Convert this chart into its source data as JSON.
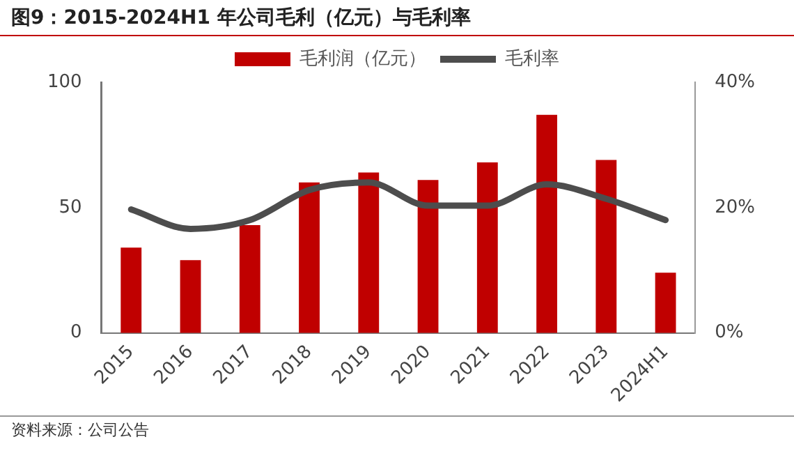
{
  "chart_data": {
    "type": "bar",
    "title": "图9：2015-2024H1 年公司毛利（亿元）与毛利率",
    "categories": [
      "2015",
      "2016",
      "2017",
      "2018",
      "2019",
      "2020",
      "2021",
      "2022",
      "2023",
      "2024H1"
    ],
    "series": [
      {
        "name": "毛利润（亿元）",
        "color": "#c00000",
        "values": [
          34,
          29,
          43,
          60,
          64,
          61,
          68,
          87,
          69,
          24
        ]
      },
      {
        "name": "毛利率",
        "type": "line",
        "axis": "y2",
        "color": "#4d4d4d",
        "values": [
          19.7,
          16.6,
          18,
          22.8,
          24,
          20.3,
          20.3,
          23.7,
          21.4,
          18
        ]
      }
    ],
    "ylim": [
      0,
      100
    ],
    "yticks": [
      0,
      50,
      100
    ],
    "y2lim": [
      0,
      40
    ],
    "y2ticks": [
      {
        "value": 0,
        "label": "0%"
      },
      {
        "value": 20,
        "label": "20%"
      },
      {
        "value": 40,
        "label": "40%"
      }
    ],
    "grid": false,
    "legend": "top",
    "marker": "none",
    "annotations": [
      "资料来源：公司公告"
    ]
  }
}
